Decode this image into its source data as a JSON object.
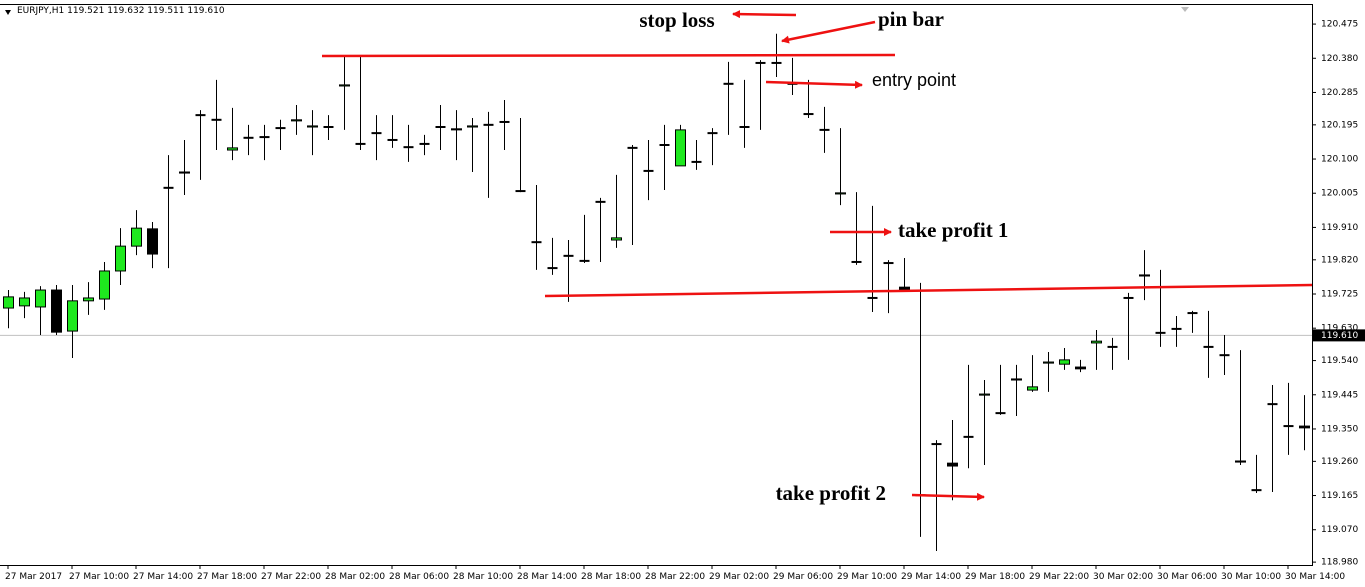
{
  "header": "EURJPY,H1  119.521 119.632 119.511 119.610",
  "annotations": [
    "stop loss",
    "pin bar",
    "entry point",
    "take profit 1",
    "take profit 2"
  ],
  "chart_data": {
    "type": "candlestick",
    "up_color": "#1ee81e",
    "down_color": "#000000",
    "grid": false,
    "ylim": [
      118.972,
      120.528
    ],
    "yticks": [
      120.475,
      {
        "value": 120.38,
        "label": "120.380"
      },
      120.285,
      120.195,
      {
        "value": 120.1,
        "label": "120.100"
      },
      120.005,
      {
        "value": 119.91,
        "label": "119.910"
      },
      {
        "value": 119.82,
        "label": "119.820"
      },
      119.725,
      {
        "value": 119.63,
        "label": "119.630"
      },
      {
        "value": 119.54,
        "label": "119.540"
      },
      119.445,
      {
        "value": 119.35,
        "label": "119.350"
      },
      {
        "value": 119.26,
        "label": "119.260"
      },
      119.165,
      {
        "value": 119.07,
        "label": "119.070"
      },
      {
        "value": 118.98,
        "label": "118.980"
      }
    ],
    "current_price": {
      "value": 119.61,
      "label": "119.610"
    },
    "categories": [
      "27 Mar 2017",
      null,
      null,
      null,
      "27 Mar 10:00",
      null,
      null,
      null,
      "27 Mar 14:00",
      null,
      null,
      null,
      "27 Mar 18:00",
      null,
      null,
      null,
      "27 Mar 22:00",
      null,
      null,
      null,
      "28 Mar 02:00",
      null,
      null,
      null,
      "28 Mar 06:00",
      null,
      null,
      null,
      "28 Mar 10:00",
      null,
      null,
      null,
      "28 Mar 14:00",
      null,
      null,
      null,
      "28 Mar 18:00",
      null,
      null,
      null,
      "28 Mar 22:00",
      null,
      null,
      null,
      "29 Mar 02:00",
      null,
      null,
      null,
      "29 Mar 06:00",
      null,
      null,
      null,
      "29 Mar 10:00",
      null,
      null,
      null,
      "29 Mar 14:00",
      null,
      null,
      null,
      "29 Mar 18:00",
      null,
      null,
      null,
      "29 Mar 22:00",
      null,
      null,
      null,
      "30 Mar 02:00",
      null,
      null,
      null,
      "30 Mar 06:00",
      null,
      null,
      null,
      "30 Mar 10:00",
      null,
      null,
      null,
      "30 Mar 14:00",
      null
    ],
    "open": [
      119.686,
      119.692,
      119.689,
      119.736,
      119.622,
      119.706,
      119.711,
      119.789,
      119.858,
      119.906,
      120.02,
      120.064,
      120.222,
      120.209,
      120.125,
      120.159,
      120.161,
      120.186,
      120.206,
      120.189,
      120.189,
      120.303,
      120.142,
      120.172,
      120.153,
      120.133,
      120.142,
      120.189,
      120.184,
      120.189,
      120.195,
      120.203,
      120.011,
      119.869,
      119.797,
      119.831,
      119.817,
      119.981,
      119.875,
      120.131,
      120.067,
      120.139,
      120.081,
      120.092,
      120.172,
      120.309,
      120.189,
      120.367,
      120.367,
      120.309,
      120.225,
      120.181,
      120.003,
      119.814,
      119.714,
      119.811,
      119.744,
      119.166,
      119.308,
      119.255,
      119.328,
      119.444,
      119.394,
      119.489,
      119.458,
      119.533,
      119.53,
      119.522,
      119.589,
      119.578,
      119.714,
      119.778,
      119.617,
      119.628,
      119.672,
      119.578,
      119.555,
      119.261,
      119.18,
      119.419,
      119.358,
      119.358
    ],
    "high": [
      119.736,
      119.731,
      119.747,
      119.75,
      119.75,
      119.758,
      119.814,
      119.908,
      119.958,
      119.925,
      120.111,
      120.153,
      120.236,
      120.32,
      120.242,
      120.195,
      120.195,
      120.209,
      120.25,
      120.236,
      120.222,
      120.384,
      120.386,
      120.222,
      120.222,
      120.195,
      120.167,
      120.25,
      120.236,
      120.214,
      120.231,
      120.264,
      120.214,
      120.028,
      119.881,
      119.875,
      119.945,
      119.992,
      120.056,
      120.139,
      120.153,
      120.195,
      120.195,
      120.153,
      120.186,
      120.37,
      120.32,
      120.375,
      120.448,
      120.381,
      120.32,
      120.245,
      120.186,
      120.008,
      119.97,
      119.819,
      119.825,
      119.756,
      119.319,
      119.375,
      119.528,
      119.486,
      119.528,
      119.528,
      119.555,
      119.564,
      119.575,
      119.542,
      119.625,
      119.603,
      119.728,
      119.847,
      119.792,
      119.664,
      119.678,
      119.678,
      119.611,
      119.569,
      119.278,
      119.472,
      119.478,
      119.444
    ],
    "low": [
      119.63,
      119.658,
      119.611,
      119.611,
      119.547,
      119.667,
      119.681,
      119.75,
      119.833,
      119.797,
      119.797,
      120.0,
      120.042,
      120.125,
      120.097,
      120.111,
      120.097,
      120.125,
      120.167,
      120.111,
      120.153,
      120.181,
      120.125,
      120.097,
      120.131,
      120.092,
      120.111,
      120.125,
      120.097,
      120.064,
      119.992,
      120.125,
      120.008,
      119.792,
      119.778,
      119.703,
      119.811,
      119.814,
      119.853,
      119.861,
      119.986,
      120.014,
      120.083,
      120.07,
      120.083,
      120.167,
      120.131,
      120.181,
      120.328,
      120.278,
      120.214,
      120.117,
      119.972,
      119.806,
      119.675,
      119.672,
      119.731,
      119.05,
      119.011,
      119.152,
      119.241,
      119.25,
      119.389,
      119.386,
      119.453,
      119.453,
      119.514,
      119.508,
      119.514,
      119.514,
      119.542,
      119.708,
      119.578,
      119.578,
      119.617,
      119.492,
      119.5,
      119.25,
      119.172,
      119.175,
      119.278,
      119.291
    ],
    "close": [
      119.717,
      119.714,
      119.736,
      119.619,
      119.706,
      119.714,
      119.789,
      119.858,
      119.908,
      119.836,
      120.02,
      120.061,
      120.222,
      120.211,
      120.131,
      120.159,
      120.161,
      120.186,
      120.209,
      120.192,
      120.189,
      120.306,
      120.142,
      120.172,
      120.153,
      120.133,
      120.142,
      120.189,
      120.181,
      120.192,
      120.195,
      120.203,
      120.011,
      119.869,
      119.797,
      119.833,
      119.817,
      119.981,
      119.881,
      120.131,
      120.067,
      120.139,
      120.181,
      120.092,
      120.172,
      120.309,
      120.189,
      120.367,
      120.365,
      120.309,
      120.225,
      120.181,
      120.006,
      119.814,
      119.714,
      119.811,
      119.736,
      119.166,
      119.308,
      119.247,
      119.328,
      119.447,
      119.394,
      119.486,
      119.467,
      119.536,
      119.542,
      119.517,
      119.594,
      119.578,
      119.714,
      119.775,
      119.617,
      119.63,
      119.672,
      119.578,
      119.555,
      119.258,
      119.18,
      119.419,
      119.358,
      119.353
    ]
  }
}
